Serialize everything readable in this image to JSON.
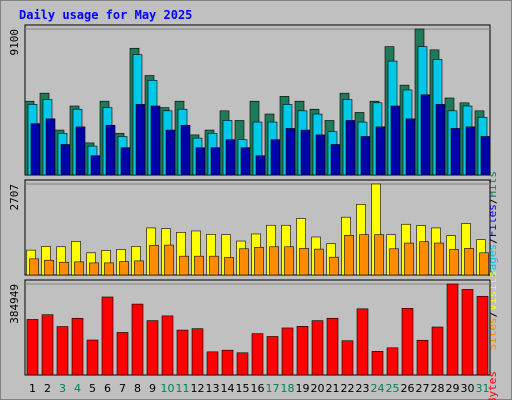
{
  "title": "Daily usage for May 2025",
  "chart_data": [
    {
      "type": "bar",
      "panel": "hits-files-pages",
      "categories": [
        "1",
        "2",
        "3",
        "4",
        "5",
        "6",
        "7",
        "8",
        "9",
        "10",
        "11",
        "12",
        "13",
        "14",
        "15",
        "16",
        "17",
        "18",
        "19",
        "20",
        "21",
        "22",
        "23",
        "24",
        "25",
        "26",
        "27",
        "28",
        "29",
        "30",
        "31"
      ],
      "max_label": "9100",
      "ylim": [
        0,
        9100
      ],
      "series": [
        {
          "name": "Hits",
          "color": "#1f7a5a",
          "values": [
            4600,
            5100,
            2800,
            4300,
            2000,
            4600,
            2600,
            7900,
            6200,
            4200,
            4600,
            2500,
            2800,
            4000,
            3400,
            4600,
            3800,
            4900,
            4600,
            4100,
            3400,
            5100,
            3900,
            4600,
            8000,
            5600,
            9100,
            7800,
            4800,
            4500,
            4000
          ]
        },
        {
          "name": "Files",
          "color": "#00c8e8",
          "values": [
            4400,
            4700,
            2600,
            4100,
            1800,
            4200,
            2400,
            7500,
            5900,
            4000,
            4100,
            2300,
            2600,
            3400,
            2200,
            3300,
            3300,
            4400,
            4000,
            3800,
            2700,
            4700,
            3300,
            4500,
            7100,
            5300,
            8000,
            7200,
            4000,
            4300,
            3600
          ]
        },
        {
          "name": "Pages",
          "color": "#0000a8",
          "values": [
            3200,
            3500,
            1900,
            3000,
            1200,
            3100,
            1700,
            4400,
            4300,
            2800,
            3100,
            1700,
            1700,
            2200,
            1700,
            1200,
            2200,
            2900,
            2800,
            2500,
            1900,
            3400,
            2400,
            3000,
            4300,
            3500,
            5000,
            4400,
            2900,
            3000,
            2400
          ]
        }
      ],
      "axis_label": [
        "Pages",
        "/",
        "Files",
        "/",
        "Hits"
      ]
    },
    {
      "type": "bar",
      "panel": "visits-sites",
      "categories": [
        "1",
        "2",
        "3",
        "4",
        "5",
        "6",
        "7",
        "8",
        "9",
        "10",
        "11",
        "12",
        "13",
        "14",
        "15",
        "16",
        "17",
        "18",
        "19",
        "20",
        "21",
        "22",
        "23",
        "24",
        "25",
        "26",
        "27",
        "28",
        "29",
        "30",
        "31"
      ],
      "max_label": "2707",
      "ylim": [
        0,
        2707
      ],
      "series": [
        {
          "name": "Visits",
          "color": "#ffff00",
          "values": [
            740,
            850,
            840,
            1000,
            660,
            730,
            760,
            850,
            1400,
            1380,
            1270,
            1310,
            1210,
            1200,
            1010,
            1220,
            1480,
            1480,
            1680,
            1130,
            930,
            1720,
            2100,
            2707,
            1200,
            1510,
            1470,
            1400,
            1170,
            1530,
            1050
          ]
        },
        {
          "name": "Sites",
          "color": "#ff8c00",
          "values": [
            480,
            440,
            380,
            390,
            360,
            360,
            400,
            420,
            880,
            890,
            560,
            560,
            560,
            520,
            780,
            820,
            840,
            840,
            790,
            770,
            530,
            1180,
            1200,
            1200,
            780,
            950,
            990,
            950,
            760,
            790,
            660
          ]
        }
      ],
      "axis_label": [
        "Sites",
        "/",
        "Visits"
      ]
    },
    {
      "type": "bar",
      "panel": "kbytes",
      "categories": [
        "1",
        "2",
        "3",
        "4",
        "5",
        "6",
        "7",
        "8",
        "9",
        "10",
        "11",
        "12",
        "13",
        "14",
        "15",
        "16",
        "17",
        "18",
        "19",
        "20",
        "21",
        "22",
        "23",
        "24",
        "25",
        "26",
        "27",
        "28",
        "29",
        "30",
        "31"
      ],
      "max_label": "384949",
      "ylim": [
        0,
        384949
      ],
      "series": [
        {
          "name": "KBytes",
          "color": "#ff0000",
          "values": [
            235000,
            255000,
            205000,
            240000,
            148000,
            330000,
            180000,
            300000,
            230000,
            250000,
            190000,
            196000,
            98000,
            105000,
            94000,
            175000,
            163000,
            199000,
            206000,
            230000,
            240000,
            145000,
            280000,
            100000,
            115000,
            282000,
            147000,
            203000,
            384949,
            362000,
            333000
          ]
        }
      ],
      "axis_label": [
        "KBytes"
      ]
    }
  ],
  "weekend_days": [
    "3",
    "4",
    "10",
    "11",
    "17",
    "18",
    "24",
    "25",
    "31"
  ],
  "colors": {
    "day_normal": "#000000",
    "day_weekend": "#00805a"
  }
}
